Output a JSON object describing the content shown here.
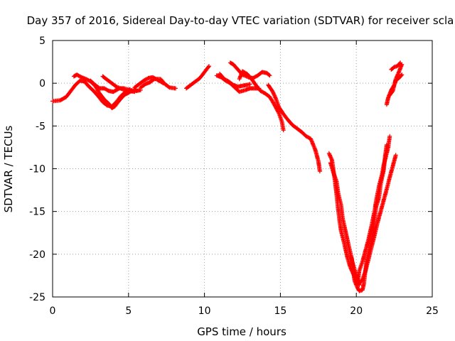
{
  "chart_data": {
    "type": "scatter",
    "title": "Day 357 of 2016, Sidereal Day-to-day VTEC variation (SDTVAR) for receiver scla",
    "xlabel": "GPS time / hours",
    "ylabel": "SDTVAR / TECUs",
    "xlim": [
      0,
      25
    ],
    "ylim": [
      -25,
      5
    ],
    "xticks": [
      "0",
      "5",
      "10",
      "15",
      "20",
      "25"
    ],
    "yticks": [
      "5",
      "0",
      "-5",
      "-10",
      "-15",
      "-20",
      "-25"
    ],
    "grid": true,
    "marker": "+",
    "color": "#ff0000",
    "segments": [
      [
        [
          0.0,
          -2.1
        ],
        [
          0.5,
          -2.0
        ],
        [
          0.9,
          -1.6
        ],
        [
          1.2,
          -0.9
        ],
        [
          1.5,
          -0.2
        ],
        [
          1.8,
          0.3
        ],
        [
          2.1,
          0.2
        ],
        [
          2.4,
          -0.4
        ],
        [
          2.7,
          -0.9
        ],
        [
          3.0,
          -1.5
        ],
        [
          3.3,
          -2.2
        ],
        [
          3.6,
          -2.6
        ],
        [
          3.9,
          -2.7
        ],
        [
          4.2,
          -2.2
        ],
        [
          4.5,
          -1.5
        ],
        [
          4.8,
          -1.0
        ],
        [
          5.1,
          -0.7
        ]
      ],
      [
        [
          1.4,
          0.8
        ],
        [
          1.6,
          1.0
        ],
        [
          1.9,
          0.7
        ],
        [
          2.2,
          0.5
        ],
        [
          2.5,
          0.2
        ],
        [
          2.8,
          -0.3
        ],
        [
          3.1,
          -1.2
        ],
        [
          3.4,
          -1.9
        ],
        [
          3.7,
          -2.4
        ],
        [
          3.9,
          -2.9
        ],
        [
          4.1,
          -2.7
        ],
        [
          4.4,
          -2.0
        ],
        [
          4.7,
          -1.4
        ],
        [
          5.1,
          -1.0
        ],
        [
          5.5,
          -0.7
        ]
      ],
      [
        [
          2.5,
          0.3
        ],
        [
          2.8,
          -0.2
        ],
        [
          3.1,
          -0.6
        ],
        [
          3.4,
          -0.6
        ],
        [
          3.7,
          -0.9
        ],
        [
          4.0,
          -1.0
        ],
        [
          4.4,
          -0.6
        ],
        [
          4.7,
          -0.6
        ],
        [
          5.1,
          -0.8
        ],
        [
          5.5,
          -0.9
        ],
        [
          5.8,
          -0.8
        ]
      ],
      [
        [
          3.3,
          0.8
        ],
        [
          3.6,
          0.4
        ],
        [
          3.9,
          0.0
        ],
        [
          4.2,
          -0.4
        ],
        [
          4.6,
          -0.7
        ],
        [
          5.0,
          -0.9
        ],
        [
          5.4,
          -1.0
        ]
      ],
      [
        [
          5.4,
          -0.5
        ],
        [
          5.7,
          -0.1
        ],
        [
          6.0,
          0.3
        ],
        [
          6.3,
          0.6
        ],
        [
          6.6,
          0.7
        ],
        [
          6.9,
          0.4
        ],
        [
          7.3,
          0.0
        ]
      ],
      [
        [
          5.8,
          -0.5
        ],
        [
          6.1,
          -0.1
        ],
        [
          6.4,
          0.1
        ],
        [
          6.7,
          0.5
        ],
        [
          7.1,
          0.5
        ],
        [
          7.4,
          -0.1
        ],
        [
          7.7,
          -0.5
        ],
        [
          8.1,
          -0.6
        ]
      ],
      [
        [
          8.8,
          -0.6
        ],
        [
          9.1,
          -0.2
        ],
        [
          9.4,
          0.2
        ],
        [
          9.7,
          0.6
        ],
        [
          10.0,
          1.3
        ],
        [
          10.3,
          2.0
        ]
      ],
      [
        [
          10.8,
          0.9
        ],
        [
          11.1,
          0.7
        ],
        [
          11.4,
          0.3
        ],
        [
          11.7,
          0.0
        ],
        [
          12.0,
          -0.5
        ],
        [
          12.3,
          -1.0
        ],
        [
          12.7,
          -0.8
        ],
        [
          13.0,
          -0.6
        ],
        [
          13.3,
          -0.6
        ],
        [
          13.6,
          -0.6
        ]
      ],
      [
        [
          11.0,
          1.1
        ],
        [
          11.3,
          0.5
        ],
        [
          11.6,
          0.2
        ],
        [
          11.9,
          -0.2
        ],
        [
          12.2,
          -0.4
        ],
        [
          12.5,
          -0.3
        ],
        [
          12.8,
          -0.2
        ],
        [
          13.0,
          -0.1
        ]
      ],
      [
        [
          11.7,
          2.4
        ],
        [
          11.9,
          2.2
        ],
        [
          12.2,
          1.6
        ],
        [
          12.5,
          1.0
        ],
        [
          12.9,
          0.7
        ],
        [
          13.2,
          0.6
        ],
        [
          13.5,
          0.9
        ],
        [
          13.8,
          1.3
        ],
        [
          14.1,
          1.2
        ],
        [
          14.3,
          0.9
        ]
      ],
      [
        [
          12.3,
          0.5
        ],
        [
          12.5,
          1.4
        ],
        [
          12.8,
          1.1
        ],
        [
          13.1,
          0.5
        ],
        [
          13.3,
          0.0
        ],
        [
          13.5,
          -0.5
        ],
        [
          13.7,
          -0.9
        ],
        [
          14.0,
          -1.2
        ],
        [
          14.3,
          -1.6
        ],
        [
          14.6,
          -2.5
        ],
        [
          14.9,
          -3.5
        ],
        [
          15.1,
          -4.5
        ],
        [
          15.2,
          -5.5
        ]
      ],
      [
        [
          14.2,
          -0.2
        ],
        [
          14.5,
          -1.0
        ],
        [
          14.7,
          -1.8
        ],
        [
          14.9,
          -2.8
        ],
        [
          15.2,
          -3.6
        ],
        [
          15.5,
          -4.3
        ],
        [
          15.8,
          -4.9
        ],
        [
          16.1,
          -5.3
        ],
        [
          16.4,
          -5.7
        ],
        [
          16.7,
          -6.2
        ],
        [
          17.0,
          -6.5
        ],
        [
          17.3,
          -7.8
        ],
        [
          17.5,
          -9.1
        ],
        [
          17.6,
          -10.3
        ]
      ],
      [
        [
          18.2,
          -8.2
        ],
        [
          18.4,
          -9.0
        ],
        [
          18.6,
          -11.5
        ],
        [
          18.7,
          -13.0
        ],
        [
          18.8,
          -14.7
        ],
        [
          18.9,
          -16.1
        ],
        [
          19.0,
          -17.3
        ],
        [
          19.2,
          -18.7
        ],
        [
          19.4,
          -20.3
        ],
        [
          19.6,
          -21.5
        ],
        [
          19.8,
          -22.3
        ],
        [
          20.0,
          -23.0
        ],
        [
          20.2,
          -23.6
        ],
        [
          20.1,
          -23.0
        ],
        [
          20.2,
          -21.9
        ],
        [
          20.4,
          -20.9
        ],
        [
          20.6,
          -19.6
        ],
        [
          20.8,
          -18.3
        ],
        [
          21.0,
          -16.7
        ],
        [
          21.2,
          -15.0
        ],
        [
          21.3,
          -13.8
        ],
        [
          21.5,
          -12.0
        ],
        [
          21.7,
          -10.6
        ],
        [
          21.8,
          -9.6
        ],
        [
          22.0,
          -8.2
        ],
        [
          22.1,
          -7.5
        ],
        [
          22.2,
          -6.2
        ]
      ],
      [
        [
          18.3,
          -9.3
        ],
        [
          18.5,
          -10.5
        ],
        [
          18.7,
          -11.5
        ],
        [
          18.8,
          -12.8
        ],
        [
          19.0,
          -14.3
        ],
        [
          19.1,
          -15.8
        ],
        [
          19.3,
          -17.4
        ],
        [
          19.5,
          -19.0
        ],
        [
          19.7,
          -20.5
        ],
        [
          19.8,
          -22.0
        ],
        [
          19.9,
          -23.2
        ],
        [
          20.1,
          -24.0
        ],
        [
          20.2,
          -24.3
        ],
        [
          20.4,
          -24.2
        ],
        [
          20.5,
          -23.4
        ],
        [
          20.6,
          -21.9
        ],
        [
          20.7,
          -20.5
        ],
        [
          20.9,
          -19.1
        ],
        [
          21.1,
          -17.5
        ],
        [
          21.2,
          -16.0
        ],
        [
          21.3,
          -14.5
        ],
        [
          21.5,
          -13.3
        ],
        [
          21.6,
          -11.8
        ],
        [
          21.8,
          -10.2
        ],
        [
          21.9,
          -8.5
        ],
        [
          22.0,
          -7.2
        ]
      ],
      [
        [
          19.4,
          -18.5
        ],
        [
          19.6,
          -20.0
        ],
        [
          19.8,
          -21.3
        ],
        [
          20.0,
          -22.5
        ],
        [
          20.2,
          -23.4
        ],
        [
          20.4,
          -23.0
        ],
        [
          20.6,
          -22.0
        ],
        [
          20.8,
          -20.6
        ],
        [
          21.0,
          -19.2
        ],
        [
          21.2,
          -17.8
        ],
        [
          21.4,
          -16.3
        ],
        [
          21.6,
          -15.0
        ],
        [
          21.8,
          -13.7
        ],
        [
          22.0,
          -12.4
        ],
        [
          22.2,
          -11.0
        ],
        [
          22.4,
          -9.7
        ],
        [
          22.6,
          -8.4
        ]
      ],
      [
        [
          22.0,
          -2.5
        ],
        [
          22.1,
          -1.7
        ],
        [
          22.3,
          -0.8
        ],
        [
          22.5,
          -0.2
        ],
        [
          22.6,
          0.5
        ],
        [
          22.8,
          1.3
        ],
        [
          23.0,
          2.2
        ]
      ],
      [
        [
          22.2,
          -1.4
        ],
        [
          22.4,
          -0.9
        ],
        [
          22.5,
          -0.2
        ],
        [
          22.6,
          0.3
        ],
        [
          22.8,
          0.6
        ],
        [
          23.0,
          1.0
        ]
      ],
      [
        [
          22.3,
          1.6
        ],
        [
          22.5,
          1.9
        ],
        [
          22.7,
          2.0
        ],
        [
          22.9,
          2.4
        ]
      ]
    ]
  }
}
